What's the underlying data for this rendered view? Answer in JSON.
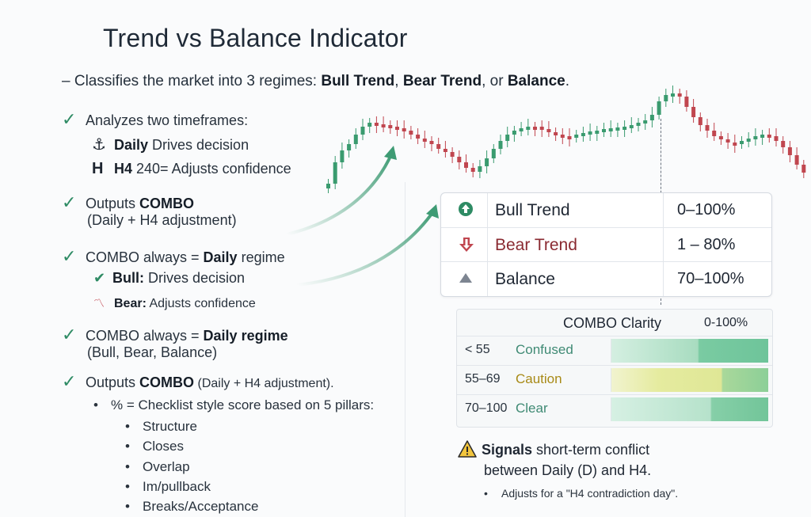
{
  "title": "Trend vs Balance Indicator",
  "subtitle": {
    "lead": "– Classifies the market into 3 regimes: ",
    "bull": "Bull Trend",
    "sep1": ", ",
    "bear": "Bear Trend",
    "sep2": ", or ",
    "balance": "Balance",
    "end": "."
  },
  "left": {
    "analyzes": "Analyzes two timeframes:",
    "daily_bold": "Daily",
    "daily_rest": " Drives decision",
    "h4_bold": "H4",
    "h4_rest": " 240= Adjusts confidence",
    "outputs1_pre": "Outputs ",
    "outputs1_bold": "COMBO",
    "outputs1_sub": "(Daily + H4 adjustment)",
    "combo1_pre": "COMBO always = ",
    "combo1_bold": "Daily",
    "combo1_post": " regime",
    "bull_bold": "Bull:",
    "bull_rest": " Drives decision",
    "bear_bold": "Bear:",
    "bear_rest": " Adjusts confidence",
    "combo2_pre": "COMBO always = ",
    "combo2_bold": "Daily regime",
    "combo2_sub": "(Bull, Bear, Balance)",
    "outputs2_pre": "Outputs ",
    "outputs2_bold": "COMBO",
    "outputs2_rest": " (Daily + H4 adjustment).",
    "pct_line": "% = Checklist style score based on 5 pillars:",
    "pillars": [
      "Structure",
      "Closes",
      "Overlap",
      "Im/pullback",
      "Breaks/Acceptance"
    ]
  },
  "regimes": [
    {
      "icon": "up-arrow-circle-icon",
      "label": "Bull Trend",
      "range": "0–100%",
      "color": "#1f2733"
    },
    {
      "icon": "down-arrow-icon",
      "label": "Bear Trend",
      "range": "1 – 80%",
      "color": "#8a2a31"
    },
    {
      "icon": "triangle-icon",
      "label": "Balance",
      "range": "70–100%",
      "color": "#1f2733"
    }
  ],
  "clarity": {
    "header": "COMBO Clarity",
    "header_range": "0-100%",
    "rows": [
      {
        "range": "< 55",
        "state": "Confused",
        "color": "#3f8a74"
      },
      {
        "range": "55–69",
        "state": "Caution",
        "color": "#a88a17"
      },
      {
        "range": "70–100",
        "state": "Clear",
        "color": "#3f8a74"
      }
    ]
  },
  "warning": {
    "line1_bold": "Signals",
    "line1_rest": " short-term conflict",
    "line2": "between Daily (D) and H4.",
    "note": "Adjusts for a \"H4 contradiction day\"."
  },
  "colors": {
    "bull": "#2e8b64",
    "bear": "#c0464f",
    "accent_green": "#3e9b74"
  }
}
